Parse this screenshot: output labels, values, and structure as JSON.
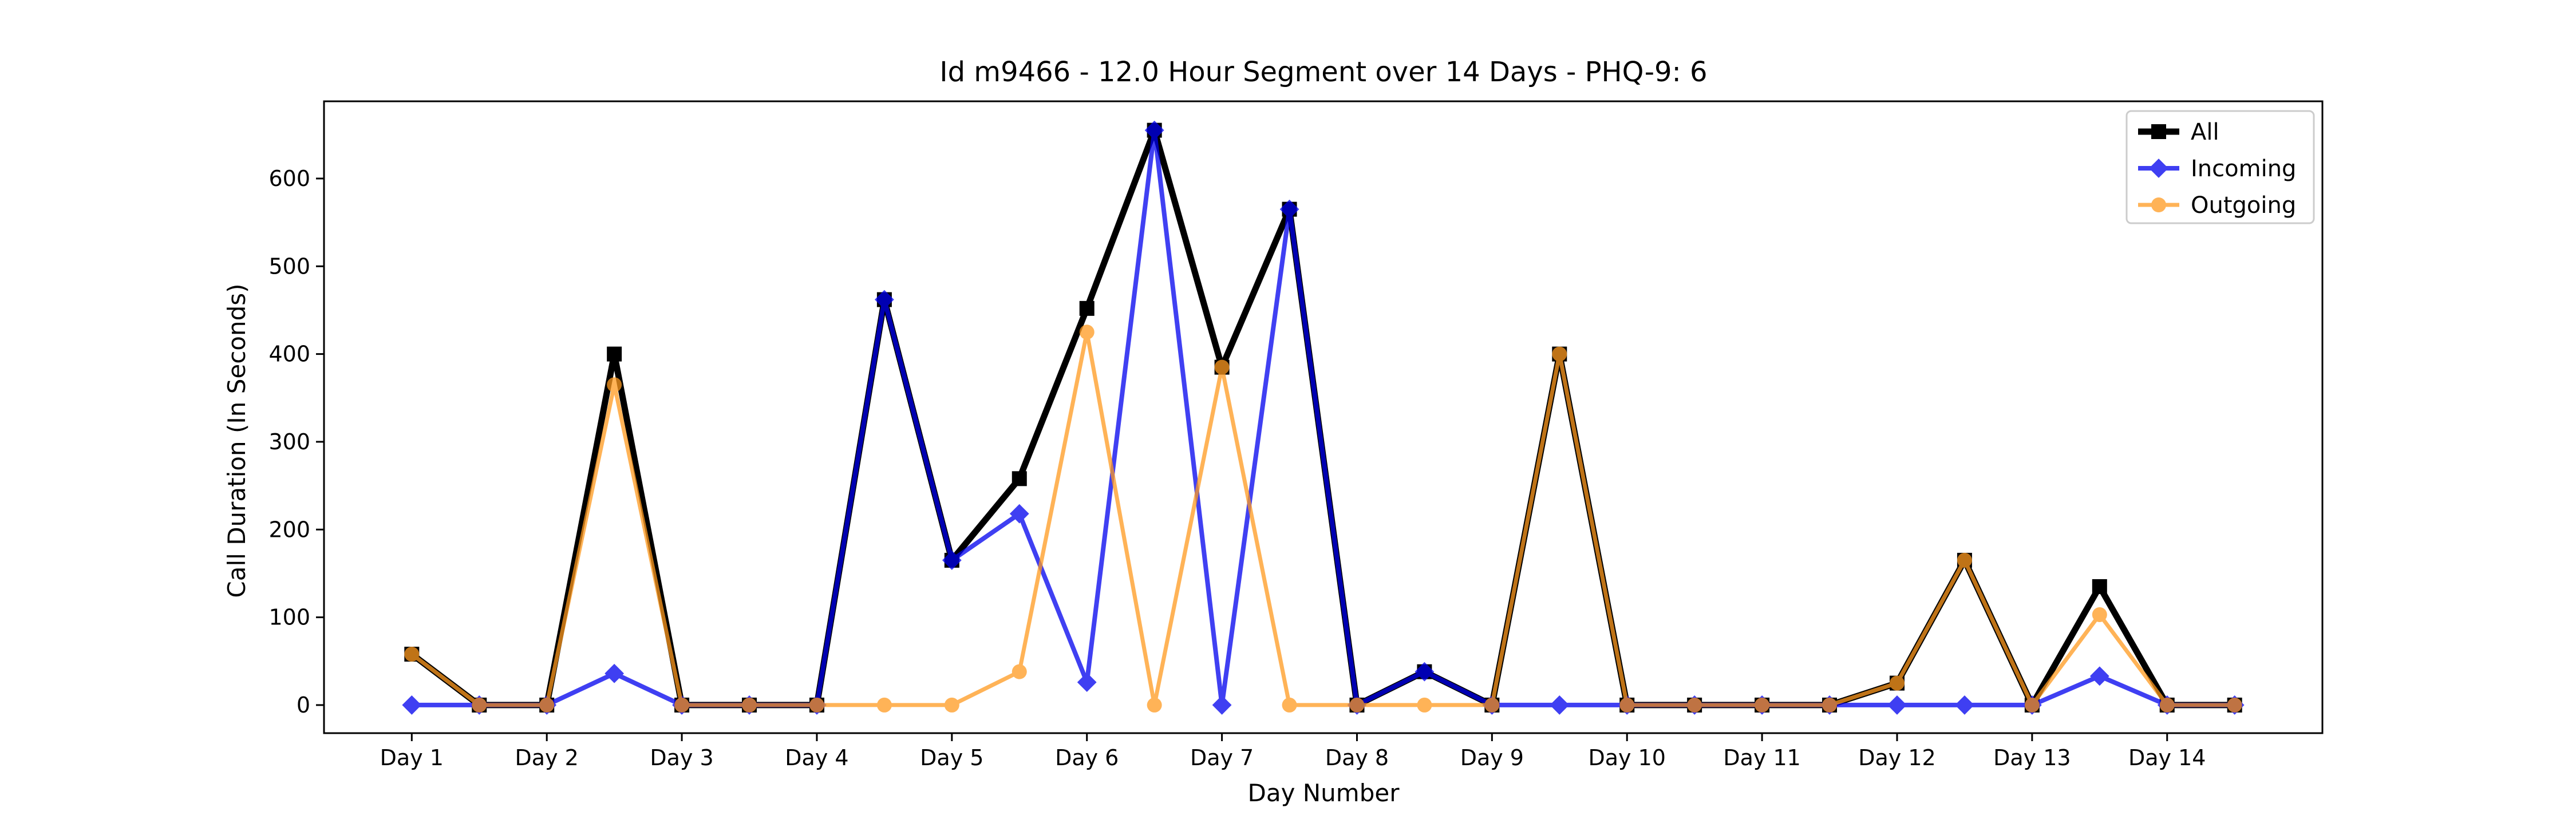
{
  "chart_data": {
    "type": "line",
    "title": "Id m9466 - 12.0 Hour Segment over 14 Days - PHQ-9: 6",
    "xlabel": "Day Number",
    "ylabel": "Call Duration (In Seconds)",
    "x_ticks": [
      {
        "label": "Day 1",
        "x": 1
      },
      {
        "label": "Day 2",
        "x": 3
      },
      {
        "label": "Day 3",
        "x": 5
      },
      {
        "label": "Day 4",
        "x": 7
      },
      {
        "label": "Day 5",
        "x": 9
      },
      {
        "label": "Day 6",
        "x": 11
      },
      {
        "label": "Day 7",
        "x": 13
      },
      {
        "label": "Day 8",
        "x": 15
      },
      {
        "label": "Day 9",
        "x": 17
      },
      {
        "label": "Day 10",
        "x": 19
      },
      {
        "label": "Day 11",
        "x": 21
      },
      {
        "label": "Day 12",
        "x": 23
      },
      {
        "label": "Day 13",
        "x": 25
      },
      {
        "label": "Day 14",
        "x": 27
      }
    ],
    "y_ticks": [
      0,
      100,
      200,
      300,
      400,
      500,
      600
    ],
    "xlim": [
      -0.3,
      29.3
    ],
    "ylim": [
      -32,
      688
    ],
    "grid": false,
    "legend_position": "top-right",
    "x": [
      1,
      2,
      3,
      4,
      5,
      6,
      7,
      8,
      9,
      10,
      11,
      12,
      13,
      14,
      15,
      16,
      17,
      18,
      19,
      20,
      21,
      22,
      23,
      24,
      25,
      26,
      27,
      28
    ],
    "series": [
      {
        "name": "All",
        "color": "#000000",
        "marker": "square",
        "values": [
          58,
          0,
          0,
          400,
          0,
          0,
          0,
          462,
          165,
          258,
          452,
          655,
          385,
          565,
          0,
          38,
          0,
          400,
          0,
          0,
          0,
          0,
          25,
          165,
          0,
          135,
          0,
          0
        ]
      },
      {
        "name": "Incoming",
        "color": "#0000ee",
        "marker": "diamond",
        "values": [
          0,
          0,
          0,
          36,
          0,
          0,
          0,
          462,
          165,
          218,
          26,
          655,
          0,
          565,
          0,
          38,
          0,
          0,
          0,
          0,
          0,
          0,
          0,
          0,
          0,
          33,
          0,
          0
        ]
      },
      {
        "name": "Outgoing",
        "color": "#ff9a1f",
        "marker": "circle",
        "values": [
          58,
          0,
          0,
          365,
          0,
          0,
          0,
          0,
          0,
          38,
          425,
          0,
          385,
          0,
          0,
          0,
          0,
          400,
          0,
          0,
          0,
          0,
          25,
          165,
          0,
          103,
          0,
          0
        ]
      }
    ]
  }
}
